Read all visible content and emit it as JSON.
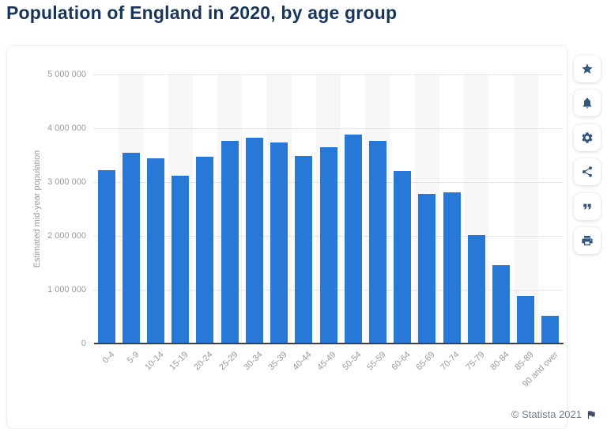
{
  "header": {
    "title": "Population of England in 2020, by age group"
  },
  "chart_data": {
    "type": "bar",
    "title": "Population of England in 2020, by age group",
    "categories": [
      "0-4",
      "5-9",
      "10-14",
      "15-19",
      "20-24",
      "25-29",
      "30-34",
      "35-39",
      "40-44",
      "45-49",
      "50-54",
      "55-59",
      "60-64",
      "65-69",
      "70-74",
      "75-79",
      "80-84",
      "85-89",
      "90 and over"
    ],
    "values": [
      3220000,
      3540000,
      3440000,
      3120000,
      3470000,
      3770000,
      3820000,
      3740000,
      3480000,
      3640000,
      3880000,
      3760000,
      3200000,
      2780000,
      2810000,
      2010000,
      1460000,
      880000,
      510000
    ],
    "xlabel": "",
    "ylabel": "Estimated mid-year population",
    "ylim": [
      0,
      5000000
    ],
    "yticks": [
      0,
      1000000,
      2000000,
      3000000,
      4000000,
      5000000
    ],
    "ytick_labels": [
      "0",
      "1 000 000",
      "2 000 000",
      "3 000 000",
      "4 000 000",
      "5 000 000"
    ],
    "grid": "horizontal-dotted",
    "legend": "none",
    "bar_color": "#2878d8",
    "band_color": "#f7f7f8"
  },
  "toolbar": {
    "buttons": [
      {
        "name": "favorite",
        "icon": "star-icon"
      },
      {
        "name": "notifications",
        "icon": "bell-icon"
      },
      {
        "name": "settings",
        "icon": "gear-icon"
      },
      {
        "name": "share",
        "icon": "share-icon"
      },
      {
        "name": "cite",
        "icon": "quote-icon"
      },
      {
        "name": "print",
        "icon": "print-icon"
      }
    ]
  },
  "footer": {
    "copyright": "© Statista 2021",
    "flag": "flag-icon"
  }
}
